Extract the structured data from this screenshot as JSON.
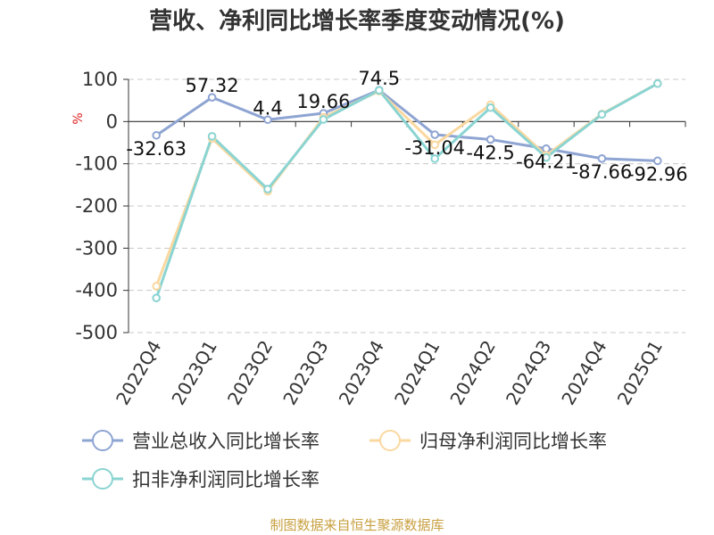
{
  "chart_data": {
    "type": "line",
    "title": "营收、净利同比增长率季度变动情况(%)",
    "ylabel": "%",
    "ylim": [
      -500,
      100
    ],
    "yticks": [
      100,
      0,
      -100,
      -200,
      -300,
      -400,
      -500
    ],
    "categories": [
      "2022Q4",
      "2023Q1",
      "2023Q2",
      "2023Q3",
      "2023Q4",
      "2024Q1",
      "2024Q2",
      "2024Q3",
      "2024Q4",
      "2025Q1"
    ],
    "grid": true,
    "legend_position": "bottom",
    "series": [
      {
        "name": "营业总收入同比增长率",
        "color": "#8ea4d2",
        "values": [
          -32.63,
          57.32,
          4.4,
          19.66,
          74.5,
          -31.04,
          -42.5,
          -64.21,
          -87.66,
          -92.96
        ],
        "labels": [
          "-32.63",
          "57.32",
          "4.4",
          "19.66",
          "74.5",
          "-31.04",
          "-42.5",
          "-64.21",
          "-87.66",
          "-92.96"
        ]
      },
      {
        "name": "归母净利润同比增长率",
        "color": "#fad8a0",
        "values": [
          -390,
          -40,
          -165,
          10,
          72,
          -55,
          40,
          -80,
          18,
          90
        ]
      },
      {
        "name": "扣非净利润同比增长率",
        "color": "#8ad4d2",
        "values": [
          -418,
          -35,
          -160,
          5,
          74,
          -88,
          33,
          -85,
          17,
          90
        ]
      }
    ]
  },
  "footer": {
    "source": "制图数据来自恒生聚源数据库"
  }
}
